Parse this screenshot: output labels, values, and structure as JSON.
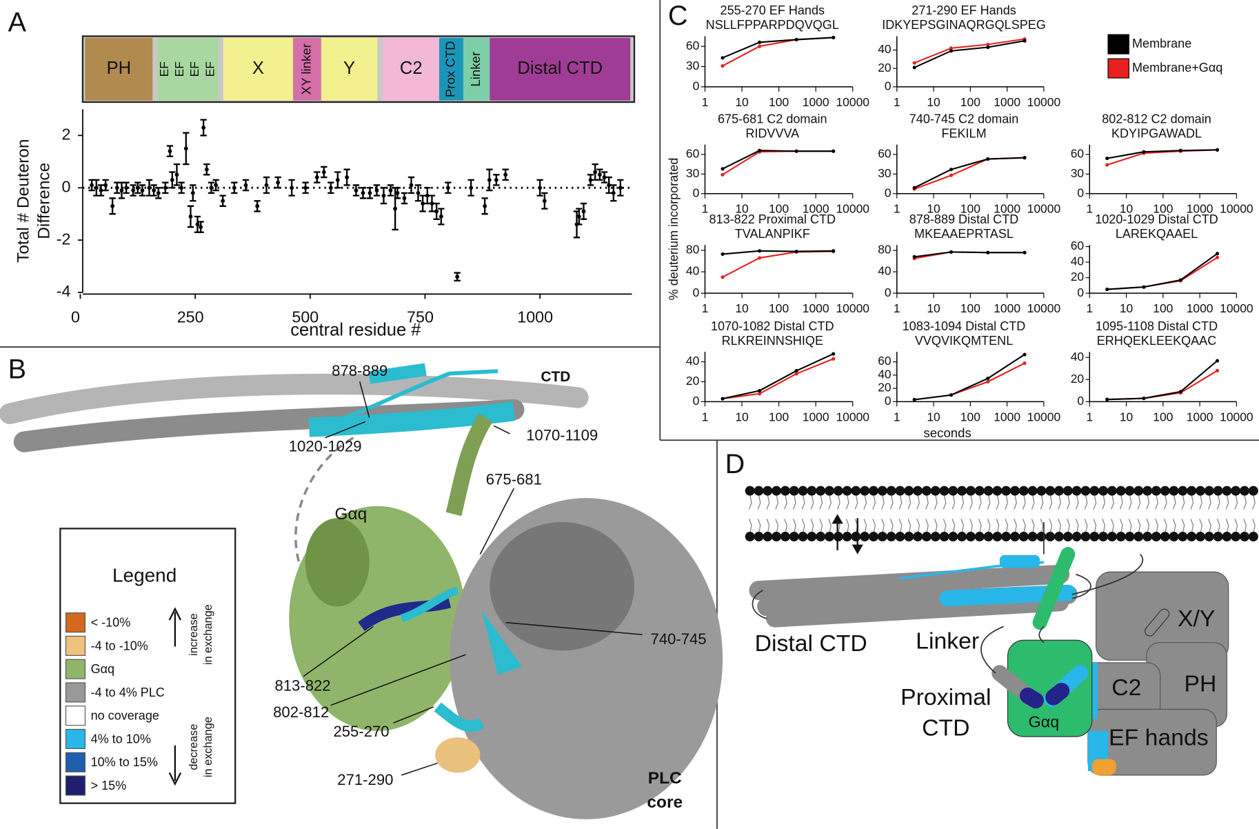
{
  "panel_labels": [
    "A",
    "B",
    "C",
    "D"
  ],
  "domain_map": [
    {
      "name": "PH",
      "color": "#b08a4e"
    },
    {
      "name": "EF",
      "color": "#a8d8a0"
    },
    {
      "name": "EF",
      "color": "#a8d8a0"
    },
    {
      "name": "EF",
      "color": "#a8d8a0"
    },
    {
      "name": "EF",
      "color": "#a8d8a0"
    },
    {
      "name": "X",
      "color": "#f3f08f"
    },
    {
      "name": "XY linker",
      "color": "#d46fa8"
    },
    {
      "name": "Y",
      "color": "#f3f08f"
    },
    {
      "name": "C2",
      "color": "#f2b8d6"
    },
    {
      "name": "Prox CTD",
      "color": "#1a97b8"
    },
    {
      "name": "Linker",
      "color": "#7ccfa8"
    },
    {
      "name": "Distal CTD",
      "color": "#a03c96"
    }
  ],
  "chart_data": [
    {
      "type": "scatter",
      "ylabel": [
        "Total # Deuteron",
        "Difference"
      ],
      "xlabel": "central residue #",
      "xlim": [
        0,
        1200
      ],
      "ylim": [
        -4,
        3
      ],
      "xticks": [
        0,
        250,
        500,
        750,
        1000
      ],
      "yticks": [
        -4,
        -2,
        0,
        2
      ],
      "reference_line": 0,
      "color": "#000000",
      "x": [
        25,
        35,
        45,
        55,
        70,
        80,
        90,
        100,
        115,
        125,
        135,
        150,
        160,
        170,
        185,
        195,
        200,
        210,
        220,
        230,
        240,
        245,
        255,
        262,
        268,
        275,
        285,
        295,
        310,
        335,
        360,
        385,
        405,
        430,
        460,
        490,
        515,
        530,
        545,
        560,
        580,
        600,
        615,
        630,
        645,
        660,
        675,
        685,
        690,
        705,
        720,
        735,
        745,
        755,
        765,
        775,
        785,
        800,
        820,
        850,
        880,
        890,
        905,
        925,
        1000,
        1010,
        1080,
        1085,
        1095,
        1110,
        1120,
        1130,
        1140,
        1150,
        1160,
        1175
      ],
      "values": [
        0.1,
        0,
        -0.1,
        0.1,
        -0.7,
        0,
        -0.1,
        0,
        -0.1,
        0,
        -0.1,
        0,
        -0.1,
        -0.2,
        0,
        1.4,
        0.3,
        0.5,
        0,
        1.5,
        -1.1,
        -0.2,
        -1.4,
        -1.5,
        2.3,
        0.7,
        0,
        0.1,
        -0.5,
        0,
        0.1,
        -0.7,
        0.1,
        0.2,
        0,
        0,
        0.4,
        0.6,
        0,
        0.3,
        0.4,
        -0.1,
        -0.2,
        -0.2,
        -0.1,
        -0.3,
        -0.1,
        -0.8,
        -0.2,
        -0.4,
        0.1,
        -0.2,
        -0.6,
        -0.3,
        -0.6,
        -0.9,
        -1.1,
        0,
        -3.4,
        0,
        -0.7,
        0.3,
        0.3,
        0.5,
        0,
        -0.5,
        -1.4,
        -1.1,
        -0.9,
        0.3,
        0.6,
        0.5,
        0.4,
        0.1,
        -0.2,
        0
      ],
      "errors": [
        0.2,
        0.3,
        0.2,
        0.2,
        0.3,
        0.2,
        0.3,
        0.2,
        0.2,
        0.2,
        0.2,
        0.3,
        0.2,
        0.2,
        0.2,
        0.2,
        0.3,
        0.4,
        0.2,
        0.6,
        0.4,
        0.3,
        0.3,
        0.2,
        0.3,
        0.2,
        0.2,
        0.2,
        0.2,
        0.2,
        0.2,
        0.2,
        0.3,
        0.2,
        0.3,
        0.2,
        0.2,
        0.2,
        0.2,
        0.3,
        0.3,
        0.2,
        0.2,
        0.2,
        0.2,
        0.3,
        0.2,
        0.8,
        0.2,
        0.2,
        0.3,
        0.3,
        0.3,
        0.3,
        0.3,
        0.3,
        0.3,
        0.2,
        0.15,
        0.3,
        0.3,
        0.4,
        0.2,
        0.2,
        0.3,
        0.3,
        0.5,
        0.3,
        0.3,
        0.2,
        0.3,
        0.2,
        0.2,
        0.3,
        0.3,
        0.3
      ]
    },
    {
      "type": "line",
      "title": "255-270 EF Hands",
      "subtitle": "NSLLFPPARPDQVQGL",
      "log_x": true,
      "x": [
        3,
        30,
        300,
        3000
      ],
      "xlim": [
        1,
        10000
      ],
      "xticks": [
        1,
        10,
        100,
        1000,
        10000
      ],
      "ylim": [
        0,
        75
      ],
      "yticks": [
        0,
        30,
        60
      ],
      "series": [
        {
          "name": "Membrane",
          "color": "#000000",
          "values": [
            43,
            66,
            70,
            73
          ]
        },
        {
          "name": "Membrane+Gαq",
          "color": "#e8201f",
          "values": [
            31,
            60,
            70,
            73
          ]
        }
      ]
    },
    {
      "type": "line",
      "title": "271-290 EF Hands",
      "subtitle": "IDKYEPSGINAQRGQLSPEG",
      "log_x": true,
      "x": [
        3,
        30,
        300,
        3000
      ],
      "xlim": [
        1,
        10000
      ],
      "xticks": [
        1,
        10,
        100,
        1000,
        10000
      ],
      "ylim": [
        0,
        55
      ],
      "yticks": [
        0,
        20,
        40
      ],
      "series": [
        {
          "name": "Membrane",
          "color": "#000000",
          "values": [
            21,
            39,
            43,
            50
          ]
        },
        {
          "name": "Membrane+Gαq",
          "color": "#e8201f",
          "values": [
            26,
            42,
            46,
            52
          ]
        }
      ]
    },
    {
      "type": "line",
      "title": "675-681 C2 domain",
      "subtitle": "RIDVVVA",
      "log_x": true,
      "x": [
        3,
        30,
        300,
        3000
      ],
      "xlim": [
        1,
        10000
      ],
      "xticks": [
        1,
        10,
        100,
        1000,
        10000
      ],
      "ylim": [
        0,
        75
      ],
      "yticks": [
        0,
        30,
        60
      ],
      "series": [
        {
          "name": "Membrane",
          "color": "#000000",
          "values": [
            38,
            66,
            65,
            65
          ]
        },
        {
          "name": "Membrane+Gαq",
          "color": "#e8201f",
          "values": [
            29,
            64,
            65,
            65
          ]
        }
      ]
    },
    {
      "type": "line",
      "title": "740-745 C2 domain",
      "subtitle": "FEKILM",
      "log_x": true,
      "x": [
        3,
        30,
        300,
        3000
      ],
      "xlim": [
        1,
        10000
      ],
      "xticks": [
        1,
        10,
        100,
        1000,
        10000
      ],
      "ylim": [
        0,
        75
      ],
      "yticks": [
        0,
        30,
        60
      ],
      "series": [
        {
          "name": "Membrane",
          "color": "#000000",
          "values": [
            9,
            37,
            53,
            55
          ]
        },
        {
          "name": "Membrane+Gαq",
          "color": "#e8201f",
          "values": [
            7,
            28,
            53,
            55
          ]
        }
      ]
    },
    {
      "type": "line",
      "title": "802-812 C2 domain",
      "subtitle": "KDYIPGAWADL",
      "log_x": true,
      "x": [
        3,
        30,
        300,
        3000
      ],
      "xlim": [
        1,
        10000
      ],
      "xticks": [
        1,
        10,
        100,
        1000,
        10000
      ],
      "ylim": [
        0,
        75
      ],
      "yticks": [
        0,
        30,
        60
      ],
      "series": [
        {
          "name": "Membrane",
          "color": "#000000",
          "values": [
            54,
            64,
            66,
            67
          ]
        },
        {
          "name": "Membrane+Gαq",
          "color": "#e8201f",
          "values": [
            44,
            62,
            65,
            67
          ]
        }
      ]
    },
    {
      "type": "line",
      "title": "813-822 Proximal CTD",
      "subtitle": "TVALANPIKF",
      "log_x": true,
      "x": [
        3,
        30,
        300,
        3000
      ],
      "xlim": [
        1,
        10000
      ],
      "xticks": [
        1,
        10,
        100,
        1000,
        10000
      ],
      "ylim": [
        0,
        90
      ],
      "yticks": [
        0,
        40,
        80
      ],
      "series": [
        {
          "name": "Membrane",
          "color": "#000000",
          "values": [
            73,
            79,
            78,
            79
          ]
        },
        {
          "name": "Membrane+Gαq",
          "color": "#e8201f",
          "values": [
            30,
            66,
            77,
            78
          ]
        }
      ]
    },
    {
      "type": "line",
      "title": "878-889 Distal CTD",
      "subtitle": "MKEAAEPRTASL",
      "log_x": true,
      "x": [
        3,
        30,
        300,
        3000
      ],
      "xlim": [
        1,
        10000
      ],
      "xticks": [
        1,
        10,
        100,
        1000,
        10000
      ],
      "ylim": [
        0,
        90
      ],
      "yticks": [
        0,
        40,
        80
      ],
      "series": [
        {
          "name": "Membrane",
          "color": "#000000",
          "values": [
            68,
            77,
            76,
            76
          ]
        },
        {
          "name": "Membrane+Gαq",
          "color": "#e8201f",
          "values": [
            65,
            77,
            76,
            76
          ]
        }
      ]
    },
    {
      "type": "line",
      "title": "1020-1029 Distal CTD",
      "subtitle": "LAREKQAAEL",
      "log_x": true,
      "x": [
        3,
        30,
        300,
        3000
      ],
      "xlim": [
        1,
        10000
      ],
      "xticks": [
        1,
        10,
        100,
        1000,
        10000
      ],
      "ylim": [
        0,
        62
      ],
      "yticks": [
        0,
        20,
        40,
        60
      ],
      "series": [
        {
          "name": "Membrane",
          "color": "#000000",
          "values": [
            5,
            8,
            17,
            51
          ]
        },
        {
          "name": "Membrane+Gαq",
          "color": "#e8201f",
          "values": [
            5,
            8,
            16,
            46
          ]
        }
      ]
    },
    {
      "type": "line",
      "title": "1070-1082 Distal CTD",
      "subtitle": "RLKREINNSHIQE",
      "log_x": true,
      "x": [
        3,
        30,
        300,
        3000
      ],
      "xlim": [
        1,
        10000
      ],
      "xticks": [
        1,
        10,
        100,
        1000,
        10000
      ],
      "ylim": [
        0,
        50
      ],
      "yticks": [
        0,
        20,
        40
      ],
      "series": [
        {
          "name": "Membrane",
          "color": "#000000",
          "values": [
            3,
            11,
            31,
            48
          ]
        },
        {
          "name": "Membrane+Gαq",
          "color": "#e8201f",
          "values": [
            3,
            8,
            28,
            43
          ]
        }
      ]
    },
    {
      "type": "line",
      "title": "1083-1094 Distal CTD",
      "subtitle": "VVQVIKQMTENL",
      "log_x": true,
      "x": [
        3,
        30,
        300,
        3000
      ],
      "xlim": [
        1,
        10000
      ],
      "xticks": [
        1,
        10,
        100,
        1000,
        10000
      ],
      "ylim": [
        0,
        75
      ],
      "yticks": [
        0,
        20,
        40,
        60
      ],
      "series": [
        {
          "name": "Membrane",
          "color": "#000000",
          "values": [
            3,
            10,
            35,
            71
          ]
        },
        {
          "name": "Membrane+Gαq",
          "color": "#e8201f",
          "values": [
            3,
            10,
            30,
            58
          ]
        }
      ]
    },
    {
      "type": "line",
      "title": "1095-1108 Distal CTD",
      "subtitle": "ERHQEKLEEKQAAC",
      "log_x": true,
      "x": [
        3,
        30,
        300,
        3000
      ],
      "xlim": [
        1,
        10000
      ],
      "xticks": [
        1,
        10,
        100,
        1000,
        10000
      ],
      "ylim": [
        0,
        45
      ],
      "yticks": [
        0,
        20,
        40
      ],
      "series": [
        {
          "name": "Membrane",
          "color": "#000000",
          "values": [
            2,
            3,
            9,
            37
          ]
        },
        {
          "name": "Membrane+Gαq",
          "color": "#e8201f",
          "values": [
            2,
            3,
            8,
            28
          ]
        }
      ]
    }
  ],
  "panel_c": {
    "ylabel": "% deuterium incorporated",
    "xlabel": "seconds"
  },
  "structure": {
    "labels": [
      "878-889",
      "CTD",
      "1020-1029",
      "1070-1109",
      "675-681",
      "Gαq",
      "740-745",
      "813-822",
      "802-812",
      "255-270",
      "271-290"
    ],
    "core": [
      "PLC",
      "core"
    ]
  },
  "legend": {
    "title": "Legend",
    "items": [
      {
        "label": "< -10%",
        "color": "#d2691e"
      },
      {
        "label": "-4 to -10%",
        "color": "#f0c27b"
      },
      {
        "label": "Gαq",
        "color": "#8fb56a"
      },
      {
        "label": "-4 to 4% PLC",
        "color": "#999999"
      },
      {
        "label": "no coverage",
        "color": "#ffffff"
      },
      {
        "label": "4% to 10%",
        "color": "#29b6e8"
      },
      {
        "label": "10% to 15%",
        "color": "#1f5fb0"
      },
      {
        "label": "> 15%",
        "color": "#1f1f6e"
      }
    ],
    "increase": [
      "increase",
      "in exchange"
    ],
    "decrease": [
      "decrease",
      "in exchange"
    ]
  },
  "schematic": {
    "distal": "Distal CTD",
    "linker": "Linker",
    "proximal": [
      "Proximal",
      "CTD"
    ],
    "gaq": "Gαq",
    "xy": "X/Y",
    "c2": "C2",
    "ph": "PH",
    "ef": "EF hands"
  }
}
